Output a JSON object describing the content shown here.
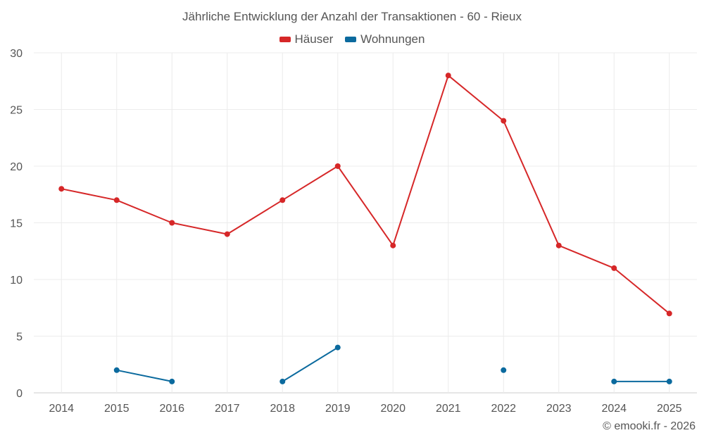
{
  "chart_data": {
    "type": "line",
    "title": "Jährliche Entwicklung der Anzahl der Transaktionen - 60 - Rieux",
    "categories": [
      "2014",
      "2015",
      "2016",
      "2017",
      "2018",
      "2019",
      "2020",
      "2021",
      "2022",
      "2023",
      "2024",
      "2025"
    ],
    "ylim": [
      0,
      30
    ],
    "yticks": [
      0,
      5,
      10,
      15,
      20,
      25,
      30
    ],
    "grid": true,
    "legend_position": "top-center",
    "series": [
      {
        "name": "Häuser",
        "color": "#d62728",
        "values": [
          18,
          17,
          15,
          14,
          17,
          20,
          13,
          28,
          24,
          13,
          11,
          7
        ]
      },
      {
        "name": "Wohnungen",
        "color": "#0b6a9e",
        "values": [
          null,
          2,
          1,
          null,
          1,
          4,
          null,
          null,
          2,
          null,
          1,
          1
        ]
      }
    ]
  },
  "credit": "© emooki.fr - 2026"
}
